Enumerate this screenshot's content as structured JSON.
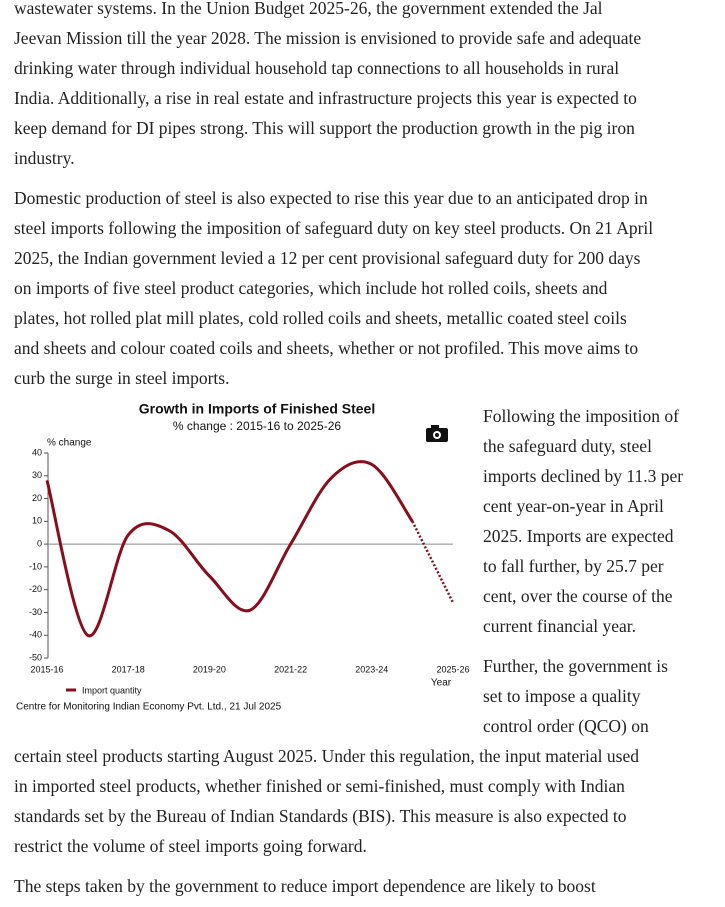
{
  "paragraphs": [
    {
      "lines": [
        "wastewater systems. In the Union Budget 2025-26, the government extended the Jal",
        "Jeevan Mission till the year 2028. The mission is envisioned to provide safe and adequate",
        "drinking water through individual household tap connections to all households in rural",
        "India. Additionally, a rise in real estate and infrastructure projects this year is expected to",
        "keep demand for DI pipes strong. This will support the production growth in the pig iron",
        "industry."
      ]
    },
    {
      "lines": [
        "Domestic production of steel is also expected to rise this year due to an anticipated drop in",
        "steel imports following the imposition of safeguard duty on key steel products. On 21 April",
        "2025, the Indian government levied a 12 per cent provisional safeguard duty for 200 days",
        "on imports of five steel product categories, which include hot rolled coils, sheets and",
        "plates, hot rolled plat mill plates, cold rolled coils and sheets, metallic coated steel coils",
        "and sheets and colour coated coils and sheets, whether or not profiled. This move aims to",
        "curb the surge in steel imports."
      ]
    },
    {
      "lines": [
        "Following the imposition of",
        "the safeguard duty, steel",
        "imports declined by 11.3 per",
        "cent year-on-year in April",
        "2025. Imports are expected",
        "to fall further, by 25.7 per",
        "cent, over the course of the",
        "current financial year."
      ]
    },
    {
      "lines": [
        "Further, the government is",
        "set to impose a quality",
        "control order (QCO) on",
        "certain steel products starting August 2025. Under this regulation, the input material used",
        "in imported steel products, whether finished or semi-finished, must comply with Indian",
        "standards set by the Bureau of Indian Standards (BIS). This measure is also expected to",
        "restrict the volume of steel imports going forward."
      ]
    },
    {
      "lines": [
        "The steps taken by the government to reduce import dependence are likely to boost"
      ]
    }
  ],
  "chart_data": {
    "type": "line",
    "title": "Growth in Imports of Finished Steel",
    "subtitle": "% change : 2015-16 to 2025-26",
    "y_label": "% change",
    "x_label": "Year",
    "categories": [
      "2015-16",
      null,
      "2017-18",
      null,
      "2019-20",
      null,
      "2021-22",
      null,
      "2023-24",
      null,
      "2025-26"
    ],
    "series": [
      {
        "name": "Import quantity",
        "color": "#8b0d1c",
        "values": [
          28,
          -40,
          4,
          6,
          -14,
          -29,
          0,
          29,
          35,
          10,
          -25.7
        ]
      }
    ],
    "dotted_last_segment": true,
    "ylim": [
      -50,
      40
    ],
    "yticks": [
      -50,
      -40,
      -30,
      -20,
      -10,
      0,
      10,
      20,
      30,
      40
    ],
    "source": "Centre for Monitoring Indian Economy Pvt. Ltd., 21 Jul 2025"
  }
}
